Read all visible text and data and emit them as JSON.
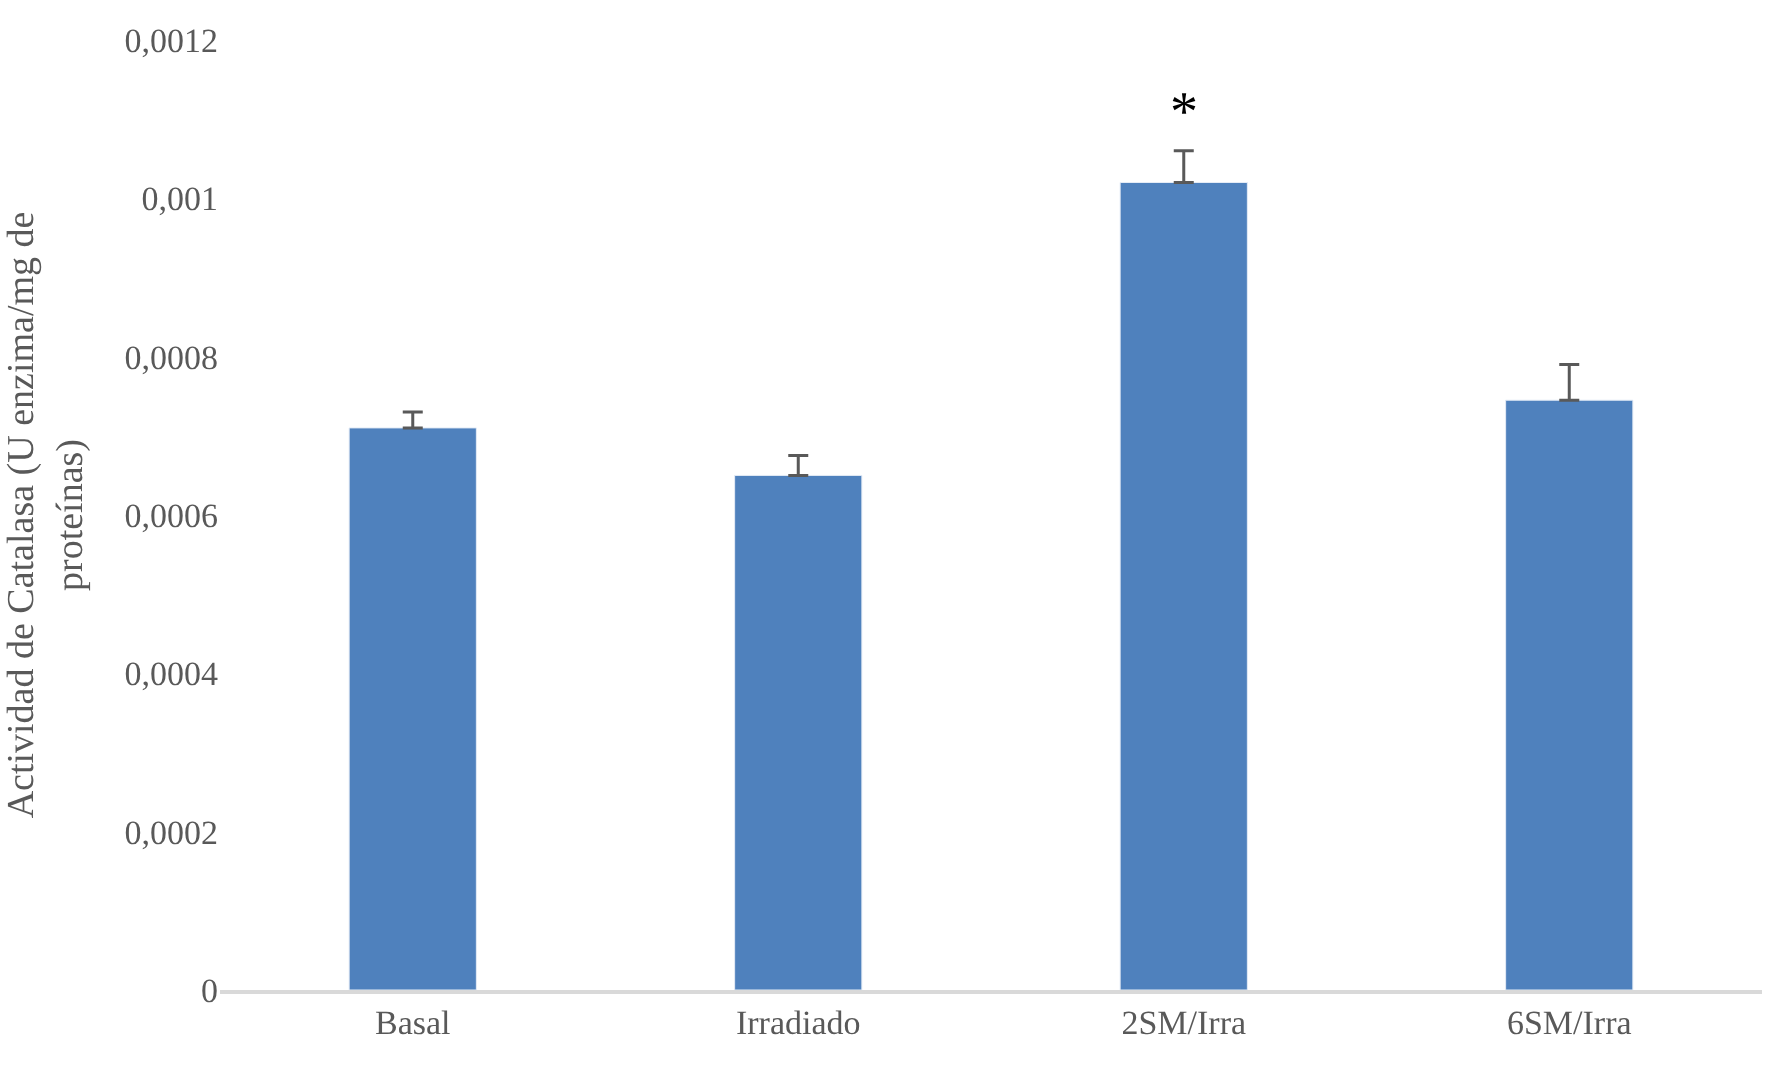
{
  "chart_data": {
    "type": "bar",
    "categories": [
      "Basal",
      "Irradiado",
      "2SM/Irra",
      "6SM/Irra"
    ],
    "values": [
      0.00071,
      0.00065,
      0.00102,
      0.000745
    ],
    "errors": [
      [
        0.00071,
        0.00073
      ],
      [
        0.00065,
        0.000675
      ],
      [
        0.00102,
        0.00106
      ],
      [
        0.000745,
        0.00079
      ]
    ],
    "color": "#4f81bd",
    "ylabel": "Actividad de Catalasa (U enzima/mg de\nproteínas)",
    "ylim": [
      0,
      0.0012
    ],
    "yticks": [
      0,
      {
        "value": 0.0002,
        "label": "0,0002"
      },
      {
        "value": 0.0004,
        "label": "0,0004"
      },
      {
        "value": 0.0006,
        "label": "0,0006"
      },
      {
        "value": 0.0008,
        "label": "0,0008"
      },
      {
        "value": 0.001,
        "label": "0,001"
      },
      {
        "value": 0.0012,
        "label": "0,0012"
      }
    ],
    "annotations": [
      "*"
    ]
  }
}
